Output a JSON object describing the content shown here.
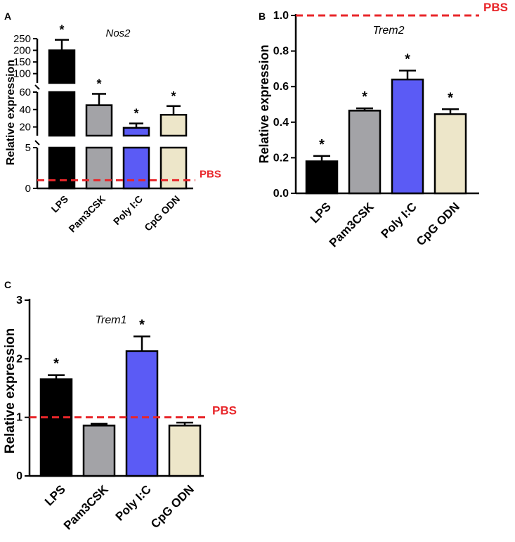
{
  "colors": {
    "LPS": "#000000",
    "Pam3CSK": "#a3a3a7",
    "Poly I:C": "#5b5bf5",
    "CpG ODN": "#ede6c9",
    "pbs_line": "#e8262a"
  },
  "chart_data": [
    {
      "panel": "A",
      "type": "bar",
      "title": "Nos2",
      "ylabel": "Relative expression",
      "xlabel": "",
      "categories": [
        "LPS",
        "Pam3CSK",
        "Poly I:C",
        "CpG ODN"
      ],
      "values": [
        200,
        45,
        19,
        34
      ],
      "errors": [
        45,
        13,
        5,
        10
      ],
      "significant": [
        true,
        true,
        true,
        true
      ],
      "reference_line": {
        "label": "PBS",
        "value": 1
      },
      "broken_axis": true,
      "segments": [
        {
          "range": [
            0,
            5
          ],
          "ticks": [
            "0",
            "5"
          ]
        },
        {
          "range": [
            10,
            60
          ],
          "ticks": [
            "20",
            "40",
            "60"
          ]
        },
        {
          "range": [
            60,
            250
          ],
          "ticks": [
            "100",
            "150",
            "200",
            "250"
          ]
        }
      ]
    },
    {
      "panel": "B",
      "type": "bar",
      "title": "Trem2",
      "ylabel": "Relative expression",
      "xlabel": "",
      "categories": [
        "LPS",
        "Pam3CSK",
        "Poly I:C",
        "CpG ODN"
      ],
      "values": [
        0.18,
        0.465,
        0.64,
        0.445
      ],
      "errors": [
        0.03,
        0.013,
        0.05,
        0.028
      ],
      "significant": [
        true,
        true,
        true,
        true
      ],
      "reference_line": {
        "label": "PBS",
        "value": 1.0
      },
      "ylim": [
        0,
        1.0
      ],
      "ticks": [
        "0.0",
        "0.2",
        "0.4",
        "0.6",
        "0.8",
        "1.0"
      ]
    },
    {
      "panel": "C",
      "type": "bar",
      "title": "Trem1",
      "ylabel": "Relative expression",
      "xlabel": "",
      "categories": [
        "LPS",
        "Pam3CSK",
        "Poly I:C",
        "CpG ODN"
      ],
      "values": [
        1.65,
        0.86,
        2.13,
        0.86
      ],
      "errors": [
        0.07,
        0.03,
        0.25,
        0.05
      ],
      "significant": [
        true,
        false,
        true,
        false
      ],
      "reference_line": {
        "label": "PBS",
        "value": 1
      },
      "ylim": [
        0,
        3
      ],
      "ticks": [
        "0",
        "1",
        "2",
        "3"
      ]
    }
  ]
}
